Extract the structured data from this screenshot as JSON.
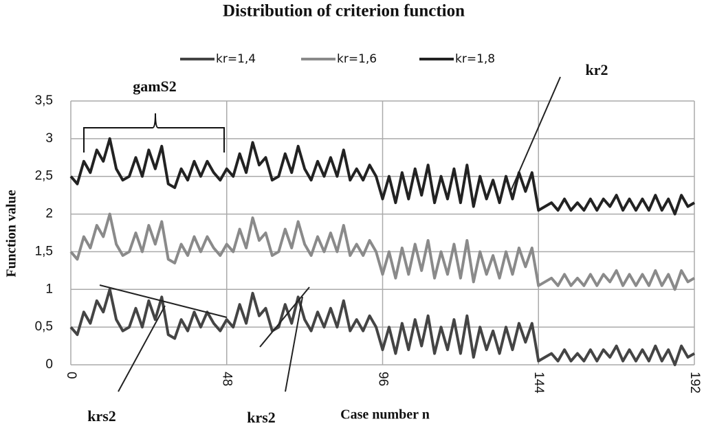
{
  "chart_data": {
    "type": "line",
    "title": "Distribution  of criterion function",
    "x_label": "Case number  n",
    "y_label": "Function  value",
    "annotations": [
      "gamS2",
      "kr2",
      "krs2",
      "krs2"
    ],
    "xlim": [
      0,
      192
    ],
    "xticks": [
      0,
      48,
      96,
      144,
      192
    ],
    "ylim": [
      0,
      3.5
    ],
    "yticks": [
      0,
      {
        "value": 0.5,
        "label": "0,5"
      },
      1,
      {
        "value": 1.5,
        "label": "1,5"
      },
      2,
      {
        "value": 2.5,
        "label": "2,5"
      },
      3,
      {
        "value": 3.5,
        "label": "3,5"
      }
    ],
    "grid": true,
    "legend": "top",
    "x": [
      0,
      2,
      4,
      6,
      8,
      10,
      12,
      14,
      16,
      18,
      20,
      22,
      24,
      26,
      28,
      30,
      32,
      34,
      36,
      38,
      40,
      42,
      44,
      46,
      48,
      50,
      52,
      54,
      56,
      58,
      60,
      62,
      64,
      66,
      68,
      70,
      72,
      74,
      76,
      78,
      80,
      82,
      84,
      86,
      88,
      90,
      92,
      94,
      96,
      98,
      100,
      102,
      104,
      106,
      108,
      110,
      112,
      114,
      116,
      118,
      120,
      122,
      124,
      126,
      128,
      130,
      132,
      134,
      136,
      138,
      140,
      142,
      144,
      146,
      148,
      150,
      152,
      154,
      156,
      158,
      160,
      162,
      164,
      166,
      168,
      170,
      172,
      174,
      176,
      178,
      180,
      182,
      184,
      186,
      188,
      190,
      192
    ],
    "series": [
      {
        "name": "kr=1,4",
        "color": "#444444",
        "values": [
          0.5,
          0.4,
          0.7,
          0.55,
          0.85,
          0.7,
          1.0,
          0.6,
          0.45,
          0.5,
          0.75,
          0.5,
          0.85,
          0.6,
          0.9,
          0.4,
          0.35,
          0.6,
          0.45,
          0.7,
          0.5,
          0.7,
          0.55,
          0.45,
          0.6,
          0.5,
          0.8,
          0.55,
          0.95,
          0.65,
          0.75,
          0.45,
          0.5,
          0.8,
          0.55,
          0.9,
          0.6,
          0.45,
          0.7,
          0.5,
          0.75,
          0.5,
          0.85,
          0.45,
          0.6,
          0.45,
          0.65,
          0.5,
          0.2,
          0.5,
          0.15,
          0.55,
          0.2,
          0.6,
          0.25,
          0.65,
          0.15,
          0.5,
          0.2,
          0.6,
          0.15,
          0.65,
          0.1,
          0.5,
          0.2,
          0.45,
          0.15,
          0.5,
          0.2,
          0.55,
          0.3,
          0.55,
          0.05,
          0.1,
          0.15,
          0.05,
          0.2,
          0.05,
          0.15,
          0.05,
          0.2,
          0.05,
          0.2,
          0.1,
          0.25,
          0.05,
          0.2,
          0.05,
          0.2,
          0.05,
          0.25,
          0.05,
          0.2,
          0.0,
          0.25,
          0.1,
          0.15
        ]
      },
      {
        "name": "kr=1,6",
        "color": "#8a8a8a",
        "values": [
          1.5,
          1.4,
          1.7,
          1.55,
          1.85,
          1.7,
          2.0,
          1.6,
          1.45,
          1.5,
          1.75,
          1.5,
          1.85,
          1.6,
          1.9,
          1.4,
          1.35,
          1.6,
          1.45,
          1.7,
          1.5,
          1.7,
          1.55,
          1.45,
          1.6,
          1.5,
          1.8,
          1.55,
          1.95,
          1.65,
          1.75,
          1.45,
          1.5,
          1.8,
          1.55,
          1.9,
          1.6,
          1.45,
          1.7,
          1.5,
          1.75,
          1.5,
          1.85,
          1.45,
          1.6,
          1.45,
          1.65,
          1.5,
          1.2,
          1.5,
          1.15,
          1.55,
          1.2,
          1.6,
          1.25,
          1.65,
          1.15,
          1.5,
          1.2,
          1.6,
          1.15,
          1.65,
          1.1,
          1.5,
          1.2,
          1.45,
          1.15,
          1.5,
          1.2,
          1.55,
          1.3,
          1.55,
          1.05,
          1.1,
          1.15,
          1.05,
          1.2,
          1.05,
          1.15,
          1.05,
          1.2,
          1.05,
          1.2,
          1.1,
          1.25,
          1.05,
          1.2,
          1.05,
          1.2,
          1.05,
          1.25,
          1.05,
          1.2,
          1.0,
          1.25,
          1.1,
          1.15
        ]
      },
      {
        "name": "kr=1,8",
        "color": "#222222",
        "values": [
          2.5,
          2.4,
          2.7,
          2.55,
          2.85,
          2.7,
          3.0,
          2.6,
          2.45,
          2.5,
          2.75,
          2.5,
          2.85,
          2.6,
          2.9,
          2.4,
          2.35,
          2.6,
          2.45,
          2.7,
          2.5,
          2.7,
          2.55,
          2.45,
          2.6,
          2.5,
          2.8,
          2.55,
          2.95,
          2.65,
          2.75,
          2.45,
          2.5,
          2.8,
          2.55,
          2.9,
          2.6,
          2.45,
          2.7,
          2.5,
          2.75,
          2.5,
          2.85,
          2.45,
          2.6,
          2.45,
          2.65,
          2.5,
          2.2,
          2.5,
          2.15,
          2.55,
          2.2,
          2.6,
          2.25,
          2.65,
          2.15,
          2.5,
          2.2,
          2.6,
          2.15,
          2.65,
          2.1,
          2.5,
          2.2,
          2.45,
          2.15,
          2.5,
          2.2,
          2.55,
          2.3,
          2.55,
          2.05,
          2.1,
          2.15,
          2.05,
          2.2,
          2.05,
          2.15,
          2.05,
          2.2,
          2.05,
          2.2,
          2.1,
          2.25,
          2.05,
          2.2,
          2.05,
          2.2,
          2.05,
          2.25,
          2.05,
          2.2,
          2.0,
          2.25,
          2.1,
          2.15
        ]
      }
    ]
  }
}
